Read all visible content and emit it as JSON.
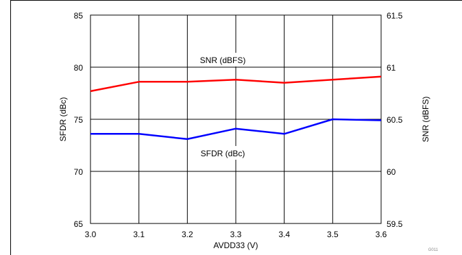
{
  "chart_data": {
    "type": "line",
    "title": "",
    "xlabel": "AVDD33 (V)",
    "ylabel_left": "SFDR (dBc)",
    "ylabel_right": "SNR (dBFS)",
    "x": [
      3.0,
      3.1,
      3.2,
      3.3,
      3.4,
      3.5,
      3.6
    ],
    "xlim": [
      3.0,
      3.6
    ],
    "ylim_left": [
      65,
      85
    ],
    "ylim_right": [
      59.5,
      61.5
    ],
    "x_ticks": [
      "3.0",
      "3.1",
      "3.2",
      "3.3",
      "3.4",
      "3.5",
      "3.6"
    ],
    "y_left_ticks": [
      "65",
      "70",
      "75",
      "80",
      "85"
    ],
    "y_right_ticks": [
      "59.5",
      "60",
      "60.5",
      "61",
      "61.5"
    ],
    "grid": true,
    "legend": "none",
    "series": [
      {
        "name": "SNR (dBFS)",
        "axis": "right",
        "color": "#ff0000",
        "values": [
          60.77,
          60.86,
          60.86,
          60.88,
          60.85,
          60.88,
          60.91
        ]
      },
      {
        "name": "SFDR (dBc)",
        "axis": "left",
        "color": "#0000ff",
        "values": [
          73.6,
          73.6,
          73.1,
          74.1,
          73.6,
          75.0,
          74.9
        ]
      }
    ],
    "figure_code": "G011"
  }
}
